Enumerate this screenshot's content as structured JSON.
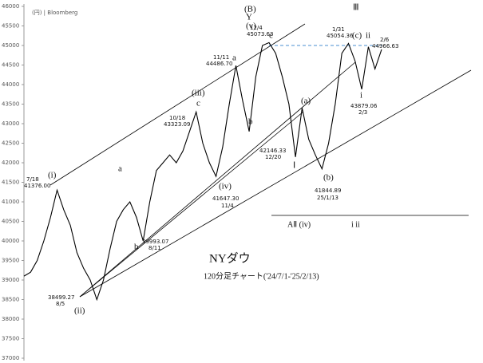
{
  "chart_data": {
    "type": "line",
    "color": "#000000",
    "values": [
      39100,
      39200,
      39500,
      40000,
      40600,
      41300,
      40800,
      40400,
      39700,
      39300,
      39000,
      38500,
      39000,
      39800,
      40500,
      40800,
      41000,
      40600,
      40000,
      41000,
      41800,
      42000,
      42200,
      42000,
      42300,
      42800,
      43300,
      42500,
      42000,
      41650,
      42400,
      43500,
      44486,
      43600,
      42800,
      44200,
      45000,
      45073,
      44800,
      44200,
      43500,
      42146,
      43400,
      42600,
      42200,
      41845,
      42500,
      43500,
      44800,
      45054,
      44600,
      43879,
      44966,
      44400,
      44900
    ],
    "ylim": [
      37000,
      46000
    ],
    "yticks": [
      46000,
      45500,
      45000,
      44500,
      44000,
      43500,
      43000,
      42500,
      42000,
      41500,
      41000,
      40500,
      40000,
      39500,
      39000,
      38500,
      38000,
      37500,
      37000
    ],
    "annotations": [
      "(円) | Bloomberg",
      "7/18",
      "41376.00",
      "(i)",
      "a",
      "38499.27",
      "8/5",
      "(ii)",
      "b",
      "39993.07",
      "8/11",
      "10/18",
      "43323.09",
      "(iii)",
      "c",
      "(iv)",
      "41647.30",
      "11/4",
      "11/11",
      "44486.70",
      "a",
      "b",
      "12/4",
      "45073.63",
      "(B)",
      "Y",
      "(v)",
      "c",
      "42146.33",
      "12/20",
      "Ⅰ",
      "(a)",
      "(b)",
      "41844.89",
      "25/1/13",
      "1/31",
      "45054.36",
      "Ⅲ",
      "(c)",
      "ii",
      "2/6",
      "44966.63",
      "i",
      "43879.06",
      "2/3",
      "AⅡ (iv)",
      "i ii",
      "NYダウ",
      "120分足チャート('24/7/1-'25/2/13)"
    ]
  }
}
